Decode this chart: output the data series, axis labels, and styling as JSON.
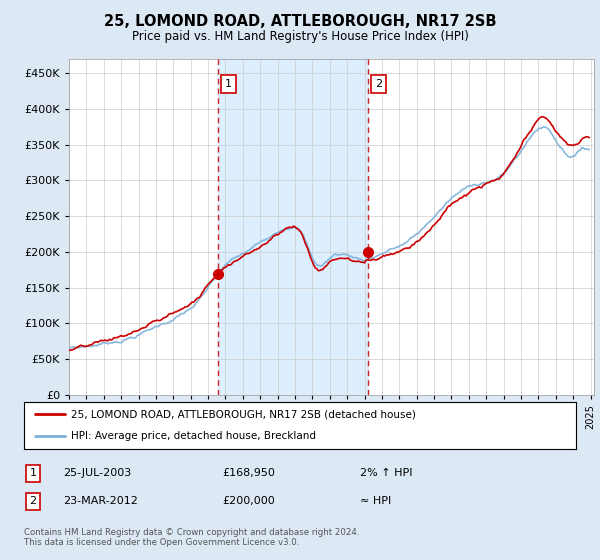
{
  "title": "25, LOMOND ROAD, ATTLEBOROUGH, NR17 2SB",
  "subtitle": "Price paid vs. HM Land Registry's House Price Index (HPI)",
  "background_color": "#dce9f5",
  "plot_bg_color": "#ffffff",
  "shade_color": "#ddeeff",
  "yticks": [
    0,
    50000,
    100000,
    150000,
    200000,
    250000,
    300000,
    350000,
    400000,
    450000
  ],
  "ylim": [
    0,
    470000
  ],
  "xlim_left": 1995.0,
  "xlim_right": 2025.2,
  "marker1_year": 2003.58,
  "marker1_price": 168950,
  "marker1_label": "1",
  "marker2_year": 2012.22,
  "marker2_price": 200000,
  "marker2_label": "2",
  "legend_line1": "25, LOMOND ROAD, ATTLEBOROUGH, NR17 2SB (detached house)",
  "legend_line2": "HPI: Average price, detached house, Breckland",
  "table_row1": [
    "1",
    "25-JUL-2003",
    "£168,950",
    "2% ↑ HPI"
  ],
  "table_row2": [
    "2",
    "23-MAR-2012",
    "£200,000",
    "≈ HPI"
  ],
  "footer": "Contains HM Land Registry data © Crown copyright and database right 2024.\nThis data is licensed under the Open Government Licence v3.0.",
  "line_color_hpi": "#7ab0d8",
  "line_color_price": "#cc0000",
  "vline_color": "#cc0000",
  "marker_dot_color": "#cc0000",
  "grid_color": "#cccccc",
  "label_box_color": "#cc0000"
}
